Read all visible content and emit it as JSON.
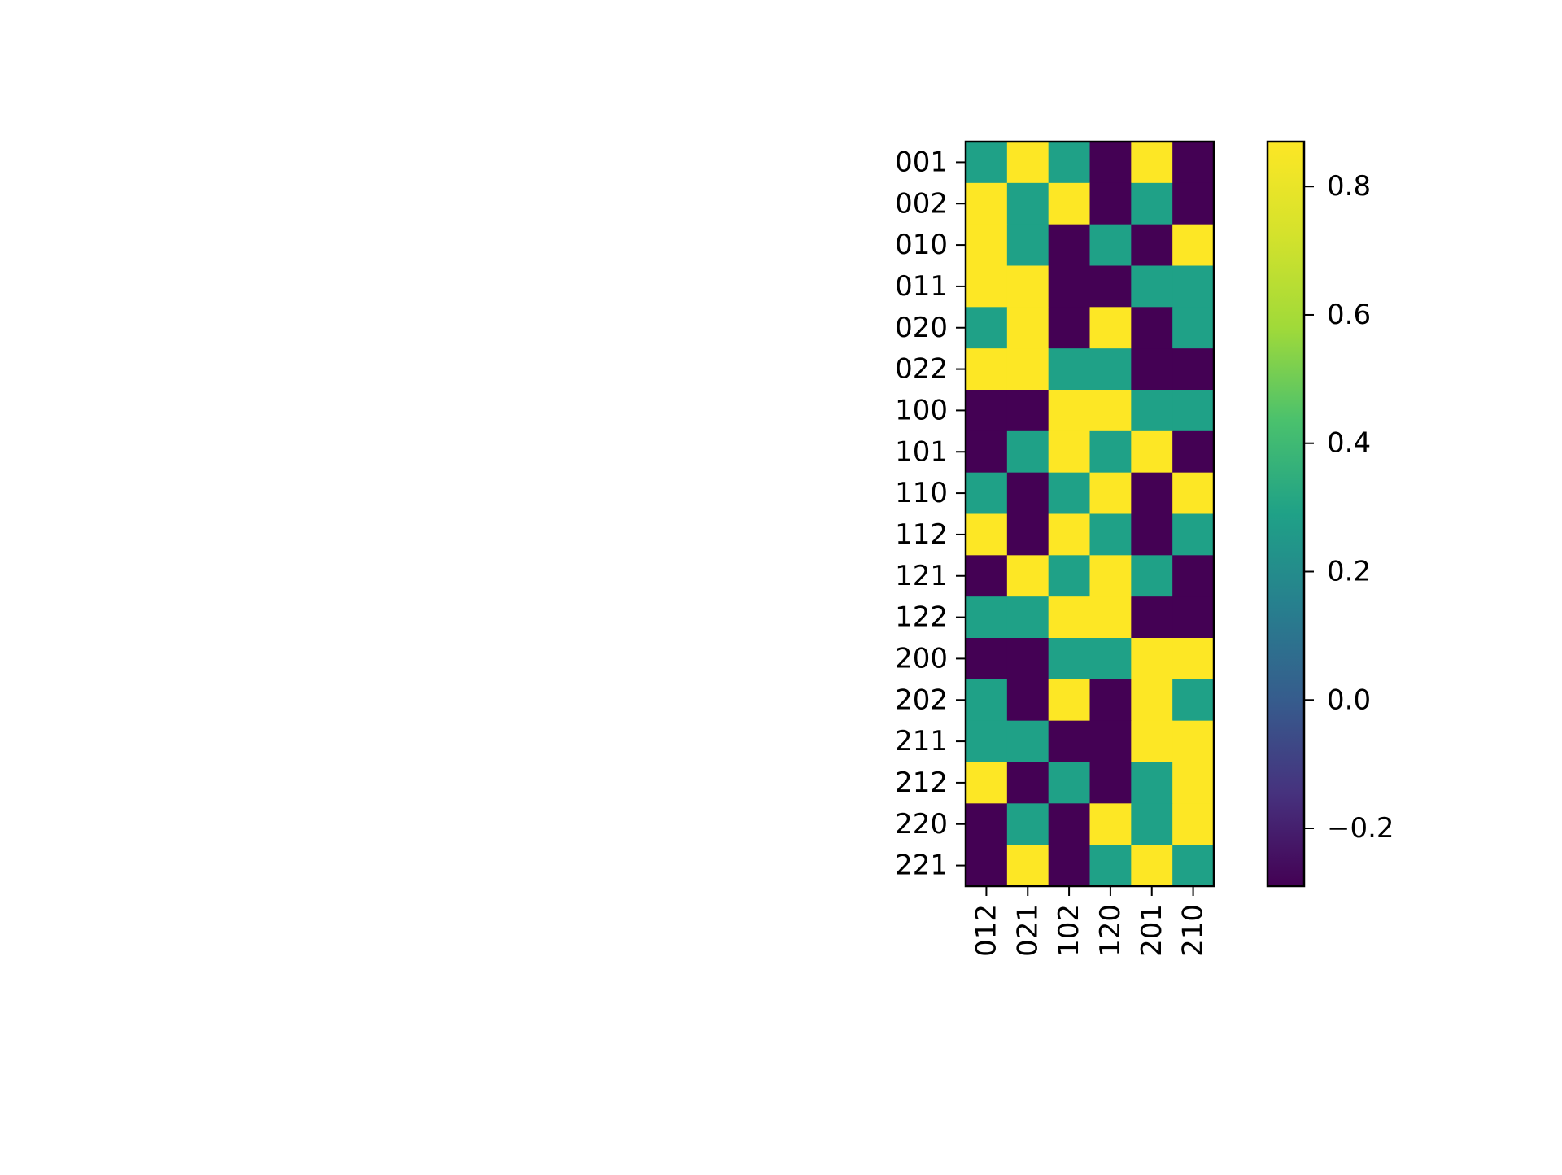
{
  "chart_data": {
    "type": "heatmap",
    "title": "",
    "xlabel": "",
    "ylabel": "",
    "x_categories": [
      "012",
      "021",
      "102",
      "120",
      "201",
      "210"
    ],
    "y_categories": [
      "001",
      "002",
      "010",
      "011",
      "020",
      "022",
      "100",
      "101",
      "110",
      "112",
      "121",
      "122",
      "200",
      "202",
      "211",
      "212",
      "220",
      "221"
    ],
    "values": [
      [
        0.29,
        0.87,
        0.29,
        -0.29,
        0.87,
        -0.29
      ],
      [
        0.87,
        0.29,
        0.87,
        -0.29,
        0.29,
        -0.29
      ],
      [
        0.87,
        0.29,
        -0.29,
        0.29,
        -0.29,
        0.87
      ],
      [
        0.87,
        0.87,
        -0.29,
        -0.29,
        0.29,
        0.29
      ],
      [
        0.29,
        0.87,
        -0.29,
        0.87,
        -0.29,
        0.29
      ],
      [
        0.87,
        0.87,
        0.29,
        0.29,
        -0.29,
        -0.29
      ],
      [
        -0.29,
        -0.29,
        0.87,
        0.87,
        0.29,
        0.29
      ],
      [
        -0.29,
        0.29,
        0.87,
        0.29,
        0.87,
        -0.29
      ],
      [
        0.29,
        -0.29,
        0.29,
        0.87,
        -0.29,
        0.87
      ],
      [
        0.87,
        -0.29,
        0.87,
        0.29,
        -0.29,
        0.29
      ],
      [
        -0.29,
        0.87,
        0.29,
        0.87,
        0.29,
        -0.29
      ],
      [
        0.29,
        0.29,
        0.87,
        0.87,
        -0.29,
        -0.29
      ],
      [
        -0.29,
        -0.29,
        0.29,
        0.29,
        0.87,
        0.87
      ],
      [
        0.29,
        -0.29,
        0.87,
        -0.29,
        0.87,
        0.29
      ],
      [
        0.29,
        0.29,
        -0.29,
        -0.29,
        0.87,
        0.87
      ],
      [
        0.87,
        -0.29,
        0.29,
        -0.29,
        0.29,
        0.87
      ],
      [
        -0.29,
        0.29,
        -0.29,
        0.87,
        0.29,
        0.87
      ],
      [
        -0.29,
        0.87,
        -0.29,
        0.29,
        0.87,
        0.29
      ]
    ],
    "colorbar": {
      "colormap": "viridis",
      "range": [
        -0.29,
        0.87
      ],
      "ticks": [
        -0.2,
        0.0,
        0.2,
        0.4,
        0.6,
        0.8
      ],
      "tick_labels": [
        "−0.2",
        "0.0",
        "0.2",
        "0.4",
        "0.6",
        "0.8"
      ]
    },
    "legend": "none",
    "grid": false
  }
}
